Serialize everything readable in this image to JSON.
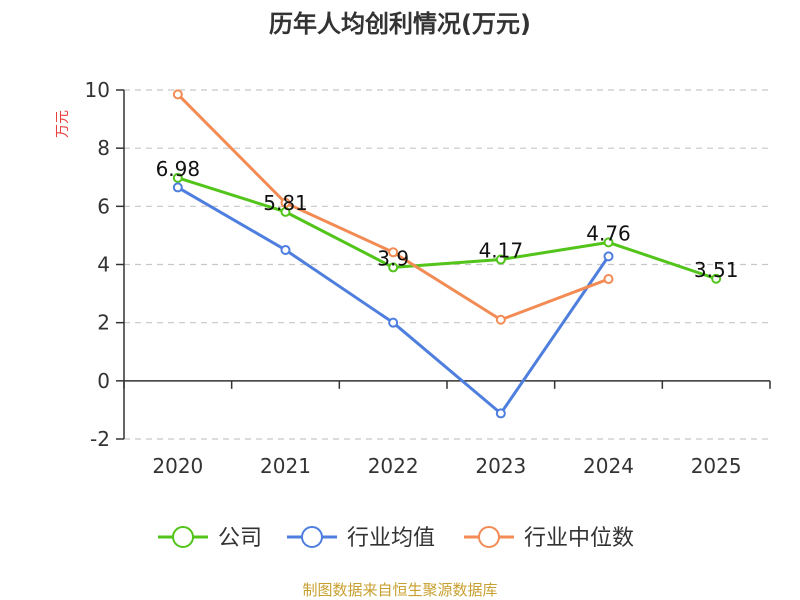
{
  "chart_data": {
    "type": "line",
    "title": "历年人均创利情况(万元)",
    "ylabel": "万元",
    "xlabel": "",
    "categories": [
      "2020",
      "2021",
      "2022",
      "2023",
      "2024",
      "2025"
    ],
    "ylim": [
      -2,
      10
    ],
    "yticks": [
      -2,
      0,
      2,
      4,
      6,
      8,
      10
    ],
    "grid": true,
    "legend_position": "bottom",
    "series": [
      {
        "name": "公司",
        "color": "#52c41a",
        "values": [
          6.98,
          5.81,
          3.9,
          4.17,
          4.76,
          3.51
        ],
        "show_labels": true
      },
      {
        "name": "行业均值",
        "color": "#4f7fde",
        "values": [
          6.65,
          4.5,
          2.0,
          -1.12,
          4.28,
          null
        ],
        "show_labels": false
      },
      {
        "name": "行业中位数",
        "color": "#f28b54",
        "values": [
          9.85,
          6.12,
          4.42,
          2.1,
          3.5,
          null
        ],
        "show_labels": false
      }
    ]
  },
  "source": "制图数据来自恒生聚源数据库"
}
